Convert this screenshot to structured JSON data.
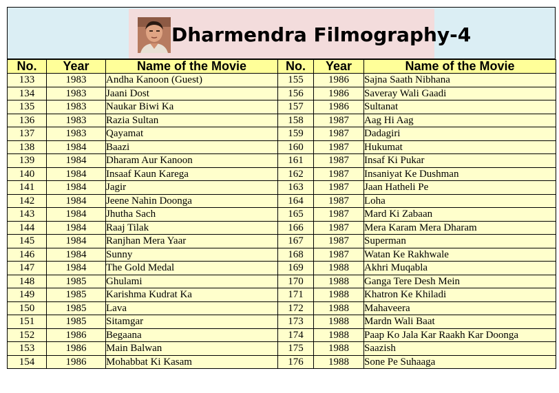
{
  "title": "Dharmendra Filmography-4",
  "avatar_icon": "actor-portrait-icon",
  "columns": {
    "no": "No.",
    "year": "Year",
    "name": "Name of the Movie"
  },
  "left": [
    {
      "no": "133",
      "year": "1983",
      "name": "Andha Kanoon (Guest)"
    },
    {
      "no": "134",
      "year": "1983",
      "name": "Jaani Dost"
    },
    {
      "no": "135",
      "year": "1983",
      "name": "Naukar Biwi Ka"
    },
    {
      "no": "136",
      "year": "1983",
      "name": "Razia Sultan"
    },
    {
      "no": "137",
      "year": "1983",
      "name": "Qayamat"
    },
    {
      "no": "138",
      "year": "1984",
      "name": "Baazi"
    },
    {
      "no": "139",
      "year": "1984",
      "name": "Dharam Aur Kanoon"
    },
    {
      "no": "140",
      "year": "1984",
      "name": "Insaaf Kaun Karega"
    },
    {
      "no": "141",
      "year": "1984",
      "name": "Jagir"
    },
    {
      "no": "142",
      "year": "1984",
      "name": "Jeene Nahin Doonga"
    },
    {
      "no": "143",
      "year": "1984",
      "name": "Jhutha Sach"
    },
    {
      "no": "144",
      "year": "1984",
      "name": "Raaj Tilak"
    },
    {
      "no": "145",
      "year": "1984",
      "name": "Ranjhan Mera Yaar"
    },
    {
      "no": "146",
      "year": "1984",
      "name": "Sunny"
    },
    {
      "no": "147",
      "year": "1984",
      "name": "The Gold Medal"
    },
    {
      "no": "148",
      "year": "1985",
      "name": "Ghulami"
    },
    {
      "no": "149",
      "year": "1985",
      "name": "Karishma Kudrat Ka"
    },
    {
      "no": "150",
      "year": "1985",
      "name": "Lava"
    },
    {
      "no": "151",
      "year": "1985",
      "name": "Sitamgar"
    },
    {
      "no": "152",
      "year": "1986",
      "name": "Begaana"
    },
    {
      "no": "153",
      "year": "1986",
      "name": "Main Balwan"
    },
    {
      "no": "154",
      "year": "1986",
      "name": "Mohabbat Ki Kasam"
    }
  ],
  "right": [
    {
      "no": "155",
      "year": "1986",
      "name": "Sajna Saath Nibhana"
    },
    {
      "no": "156",
      "year": "1986",
      "name": "Saveray Wali Gaadi"
    },
    {
      "no": "157",
      "year": "1986",
      "name": "Sultanat"
    },
    {
      "no": "158",
      "year": "1987",
      "name": "Aag Hi Aag"
    },
    {
      "no": "159",
      "year": "1987",
      "name": "Dadagiri"
    },
    {
      "no": "160",
      "year": "1987",
      "name": "Hukumat"
    },
    {
      "no": "161",
      "year": "1987",
      "name": "Insaf Ki Pukar"
    },
    {
      "no": "162",
      "year": "1987",
      "name": "Insaniyat Ke Dushman"
    },
    {
      "no": "163",
      "year": "1987",
      "name": "Jaan Hatheli Pe"
    },
    {
      "no": "164",
      "year": "1987",
      "name": "Loha"
    },
    {
      "no": "165",
      "year": "1987",
      "name": "Mard Ki Zabaan"
    },
    {
      "no": "166",
      "year": "1987",
      "name": "Mera Karam Mera Dharam"
    },
    {
      "no": "167",
      "year": "1987",
      "name": "Superman"
    },
    {
      "no": "168",
      "year": "1987",
      "name": "Watan Ke Rakhwale"
    },
    {
      "no": "169",
      "year": "1988",
      "name": "Akhri Muqabla"
    },
    {
      "no": "170",
      "year": "1988",
      "name": "Ganga Tere Desh Mein"
    },
    {
      "no": "171",
      "year": "1988",
      "name": "Khatron Ke Khiladi"
    },
    {
      "no": "172",
      "year": "1988",
      "name": "Mahaveera"
    },
    {
      "no": "173",
      "year": "1988",
      "name": "Mardn Wali Baat"
    },
    {
      "no": "174",
      "year": "1988",
      "name": "Paap Ko Jala Kar Raakh Kar Doonga"
    },
    {
      "no": "175",
      "year": "1988",
      "name": "Saazish"
    },
    {
      "no": "176",
      "year": "1988",
      "name": "Sone Pe Suhaaga"
    }
  ],
  "colors": {
    "header_bg": "#dbeef4",
    "title_bg": "#f3dcdc",
    "column_header_bg": "#ffff99",
    "cell_bg": "#ffffcc"
  }
}
